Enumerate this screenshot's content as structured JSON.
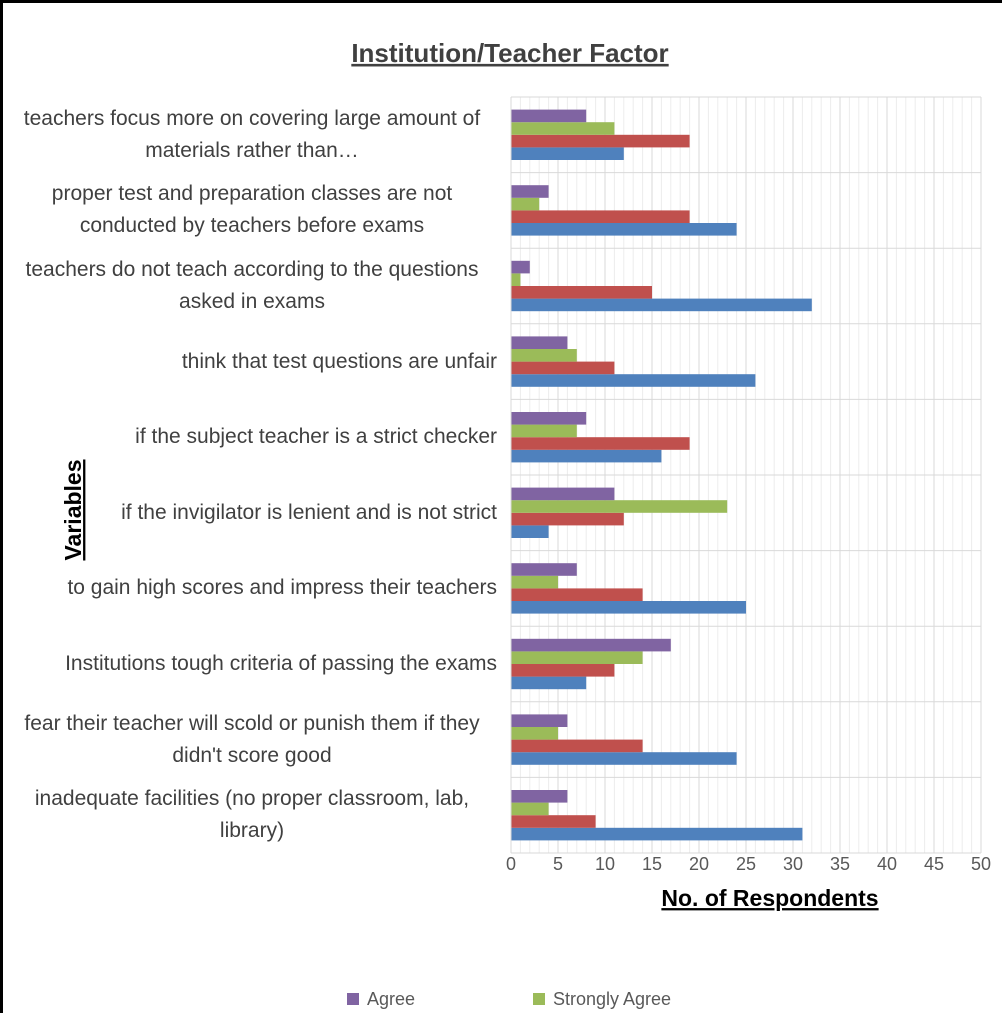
{
  "chart_data": {
    "type": "bar",
    "orientation": "horizontal",
    "title": "Institution/Teacher Factor",
    "x_label": "No. of Respondents",
    "y_label": "Variables",
    "categories": [
      "teachers focus more on covering large amount of  materials rather than…",
      "proper test and preparation classes are not conducted by teachers before exams",
      "teachers do not teach according to the questions asked in exams",
      "think that test questions are unfair",
      "if the subject teacher is a strict checker",
      "if the invigilator is lenient and is not strict",
      "to gain high scores and impress their teachers",
      "Institutions tough criteria of passing the exams",
      "fear their teacher will scold or punish them if they didn't  score good",
      "inadequate facilities (no proper classroom, lab, library)"
    ],
    "series": [
      {
        "color": "#4f81bd",
        "values": [
          12,
          24,
          32,
          26,
          16,
          4,
          25,
          8,
          24,
          31
        ]
      },
      {
        "color": "#c0504d",
        "values": [
          19,
          19,
          15,
          11,
          19,
          12,
          14,
          11,
          14,
          9
        ]
      },
      {
        "name": "Strongly Agree",
        "color": "#9bbb59",
        "values": [
          11,
          3,
          1,
          7,
          7,
          23,
          5,
          14,
          5,
          4
        ]
      },
      {
        "name": "Agree",
        "color": "#8064a2",
        "values": [
          8,
          4,
          2,
          6,
          8,
          11,
          7,
          17,
          6,
          6
        ]
      }
    ],
    "xlim": [
      0,
      50
    ],
    "xticks": [
      0,
      5,
      10,
      15,
      20,
      25,
      30,
      35,
      40,
      45,
      50
    ],
    "grid": true,
    "legend": "bottom"
  }
}
